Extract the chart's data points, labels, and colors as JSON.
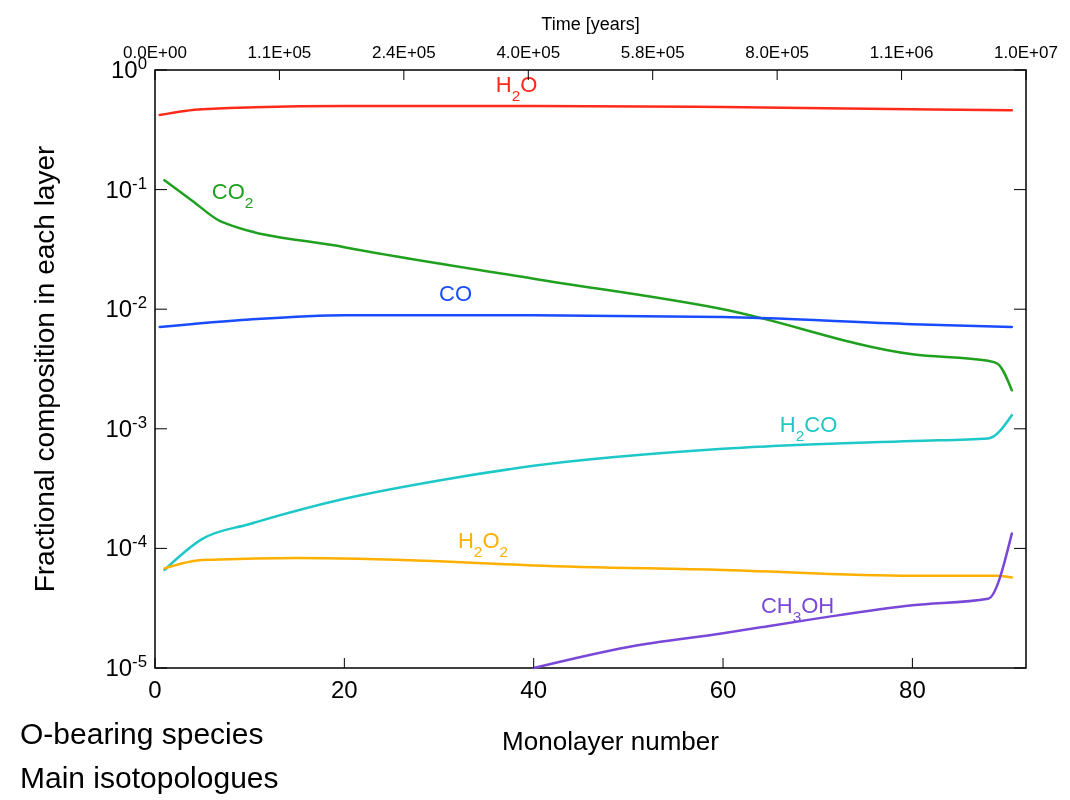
{
  "chart_data": {
    "type": "line",
    "xlabel": "Monolayer number",
    "ylabel": "Fractional composition in each layer",
    "x2label": "Time [years]",
    "log": "y",
    "xlim": [
      0,
      92
    ],
    "xticks": [
      0,
      20,
      40,
      60,
      80
    ],
    "ylim": [
      1e-05,
      1
    ],
    "yticks": [
      {
        "value": 1e-05,
        "label": "10$^{-5}$"
      },
      {
        "value": 0.0001,
        "label": "10$^{-4}$"
      },
      {
        "value": 0.001,
        "label": "10$^{-3}$"
      },
      {
        "value": 0.01,
        "label": "10$^{-2}$"
      },
      {
        "value": 0.1,
        "label": "10$^{-1}$"
      },
      {
        "value": 1,
        "label": "10$^{0}$"
      }
    ],
    "grid": false,
    "marker": "none",
    "line_style": "solid",
    "series": [
      {
        "name": "H$_{2}$O",
        "color": "#ff2a1a",
        "x": [
          0.5,
          5,
          20,
          40,
          60,
          80,
          90.5
        ],
        "values": [
          0.42,
          0.47,
          0.5,
          0.5,
          0.49,
          0.47,
          0.46
        ]
      },
      {
        "name": "CO$_{2}$",
        "color": "#1fa01f",
        "x": [
          1,
          4,
          7,
          20,
          40,
          60,
          80,
          88,
          89,
          90.5
        ],
        "values": [
          0.12,
          0.08,
          0.054,
          0.033,
          0.018,
          0.01,
          0.0042,
          0.0037,
          0.0035,
          0.0021
        ]
      },
      {
        "name": "CO",
        "color": "#1a4cff",
        "x": [
          0.5,
          10,
          20,
          40,
          60,
          80,
          90.5
        ],
        "values": [
          0.0071,
          0.0082,
          0.0089,
          0.0089,
          0.0086,
          0.0075,
          0.0071
        ]
      },
      {
        "name": "H$_{2}$CO",
        "color": "#1ec8c8",
        "x": [
          1,
          5,
          10,
          20,
          30,
          40,
          60,
          80,
          88,
          90.5
        ],
        "values": [
          6.6e-05,
          0.00012,
          0.00016,
          0.00026,
          0.00037,
          0.00049,
          0.00068,
          0.00079,
          0.00083,
          0.0013
        ]
      },
      {
        "name": "H$_{2}$O$_{2}$",
        "color": "#ffb000",
        "x": [
          1,
          5,
          15,
          30,
          40,
          60,
          80,
          89,
          90.5
        ],
        "values": [
          6.8e-05,
          8e-05,
          8.3e-05,
          7.8e-05,
          7.2e-05,
          6.6e-05,
          5.9e-05,
          5.9e-05,
          5.7e-05
        ]
      },
      {
        "name": "CH$_{3}$OH",
        "color": "#7a48d8",
        "x": [
          40,
          50,
          60,
          70,
          80,
          88,
          90.5
        ],
        "values": [
          1e-05,
          1.5e-05,
          1.95e-05,
          2.6e-05,
          3.35e-05,
          3.8e-05,
          0.000133
        ]
      }
    ],
    "annotations": [
      "O-bearing species",
      "Main isotopologues",
      "0.0E+00",
      "1.1E+05",
      "2.4E+05",
      "4.0E+05",
      "5.8E+05",
      "8.0E+05",
      "1.1E+06",
      "1.0E+07"
    ]
  }
}
